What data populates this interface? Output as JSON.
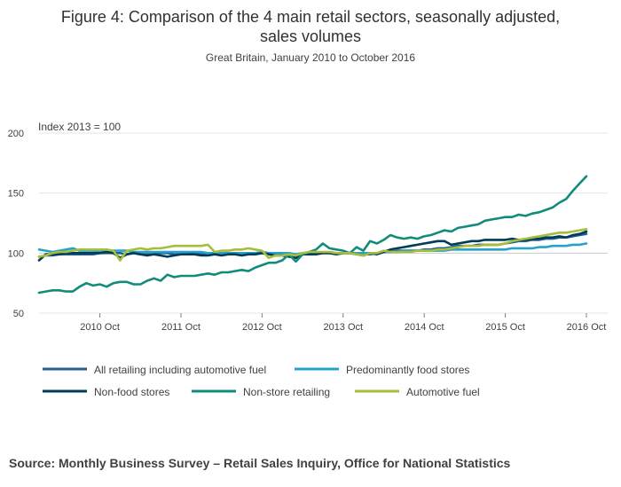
{
  "title": "Figure 4: Comparison of the 4 main retail sectors, seasonally adjusted, sales volumes",
  "subtitle": "Great Britain, January 2010 to October 2016",
  "source": "Source: Monthly Business Survey – Retail Sales Inquiry, Office for National Statistics",
  "chart_data": {
    "type": "line",
    "title": "Figure 4: Comparison of the 4 main retail sectors, seasonally adjusted, sales volumes",
    "subtitle": "Great Britain, January 2010 to October 2016",
    "ylabel": "Index 2013 = 100",
    "xlabel": "",
    "ylim": [
      50,
      200
    ],
    "yticks": [
      50,
      100,
      150,
      200
    ],
    "xlim": [
      0,
      81
    ],
    "x_note": "month index, 0 = Jan 2010",
    "xticks": [
      {
        "x": 9,
        "label": "2010 Oct"
      },
      {
        "x": 21,
        "label": "2011 Oct"
      },
      {
        "x": 33,
        "label": "2012 Oct"
      },
      {
        "x": 45,
        "label": "2013 Oct"
      },
      {
        "x": 57,
        "label": "2014 Oct"
      },
      {
        "x": 69,
        "label": "2015 Oct"
      },
      {
        "x": 81,
        "label": "2016 Oct"
      }
    ],
    "grid": true,
    "legend_position": "bottom",
    "series": [
      {
        "name": "All retailing including automotive fuel",
        "color": "#206095",
        "values": [
          97,
          98,
          98,
          99,
          99,
          99,
          99,
          99,
          99,
          100,
          100,
          100,
          100,
          99,
          100,
          99,
          99,
          99,
          100,
          100,
          99,
          99,
          99,
          100,
          99,
          100,
          99,
          100,
          100,
          100,
          100,
          100,
          100,
          100,
          99,
          99,
          99,
          99,
          98,
          99,
          100,
          100,
          100,
          100,
          100,
          100,
          100,
          100,
          99,
          99,
          100,
          101,
          101,
          102,
          102,
          102,
          102,
          103,
          103,
          104,
          104,
          105,
          106,
          106,
          106,
          107,
          107,
          107,
          107,
          108,
          109,
          110,
          110,
          111,
          111,
          112,
          112,
          113,
          113,
          114,
          115,
          116
        ]
      },
      {
        "name": "Predominantly food stores",
        "color": "#27a0cc",
        "values": [
          103,
          102,
          101,
          102,
          103,
          104,
          102,
          102,
          102,
          101,
          102,
          102,
          102,
          102,
          101,
          101,
          101,
          101,
          101,
          101,
          101,
          101,
          101,
          101,
          101,
          100,
          100,
          100,
          100,
          100,
          100,
          100,
          100,
          101,
          100,
          100,
          100,
          100,
          99,
          100,
          100,
          100,
          100,
          100,
          100,
          100,
          100,
          100,
          100,
          100,
          100,
          101,
          101,
          101,
          102,
          102,
          102,
          102,
          102,
          102,
          102,
          103,
          103,
          103,
          103,
          103,
          103,
          103,
          103,
          103,
          104,
          104,
          104,
          104,
          105,
          105,
          106,
          106,
          106,
          107,
          107,
          108
        ]
      },
      {
        "name": "Non-food stores",
        "color": "#003c57",
        "values": [
          94,
          99,
          99,
          99,
          100,
          100,
          100,
          100,
          100,
          100,
          101,
          100,
          96,
          99,
          100,
          99,
          98,
          99,
          98,
          97,
          98,
          99,
          99,
          99,
          98,
          98,
          99,
          98,
          99,
          99,
          98,
          99,
          99,
          100,
          99,
          98,
          98,
          97,
          96,
          99,
          99,
          99,
          100,
          100,
          99,
          100,
          100,
          99,
          98,
          100,
          99,
          101,
          103,
          104,
          105,
          106,
          107,
          108,
          109,
          110,
          110,
          107,
          108,
          109,
          110,
          110,
          111,
          111,
          111,
          111,
          112,
          111,
          111,
          112,
          112,
          113,
          113,
          114,
          113,
          115,
          116,
          118
        ]
      },
      {
        "name": "Non-store retailing",
        "color": "#118c7b",
        "values": [
          67,
          68,
          69,
          69,
          68,
          68,
          72,
          75,
          73,
          74,
          72,
          75,
          76,
          76,
          74,
          74,
          77,
          79,
          77,
          82,
          80,
          81,
          81,
          81,
          82,
          83,
          82,
          84,
          84,
          85,
          86,
          85,
          88,
          90,
          92,
          92,
          94,
          99,
          93,
          99,
          101,
          103,
          108,
          104,
          103,
          102,
          100,
          105,
          102,
          110,
          108,
          111,
          115,
          113,
          112,
          113,
          112,
          114,
          115,
          117,
          119,
          118,
          121,
          122,
          123,
          124,
          127,
          128,
          129,
          130,
          130,
          132,
          131,
          133,
          134,
          136,
          138,
          142,
          145,
          152,
          158,
          164
        ]
      },
      {
        "name": "Automotive fuel",
        "color": "#a8bd3a",
        "values": [
          97,
          98,
          100,
          101,
          101,
          102,
          103,
          103,
          103,
          103,
          103,
          102,
          94,
          102,
          103,
          104,
          103,
          104,
          104,
          105,
          106,
          106,
          106,
          106,
          106,
          107,
          101,
          102,
          102,
          103,
          103,
          104,
          103,
          102,
          96,
          98,
          98,
          99,
          98,
          100,
          101,
          101,
          101,
          101,
          100,
          100,
          100,
          99,
          98,
          100,
          100,
          102,
          101,
          101,
          101,
          101,
          102,
          102,
          102,
          103,
          103,
          104,
          105,
          106,
          106,
          106,
          107,
          107,
          107,
          108,
          110,
          111,
          112,
          113,
          114,
          115,
          116,
          117,
          117,
          118,
          119,
          120
        ]
      }
    ]
  }
}
